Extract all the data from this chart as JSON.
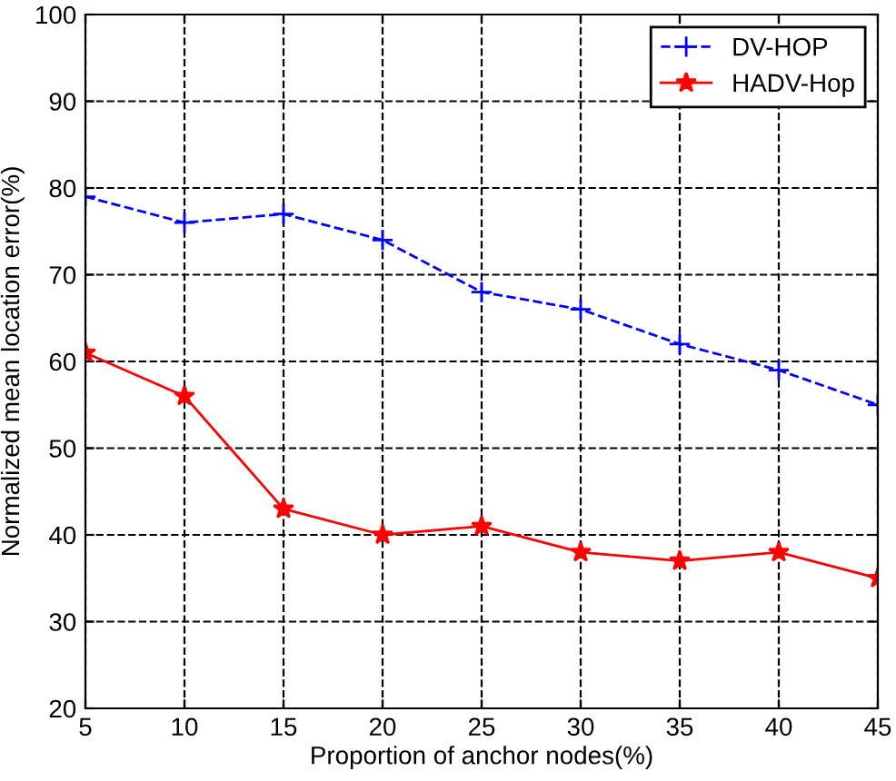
{
  "chart_data": {
    "type": "line",
    "xlabel": "Proportion of anchor nodes(%)",
    "ylabel": "Normalized mean location error(%)",
    "x": [
      5,
      10,
      15,
      20,
      25,
      30,
      35,
      40,
      45
    ],
    "series": [
      {
        "name": "DV-HOP",
        "color": "#0000ff",
        "marker": "cross",
        "line_style": "dashed",
        "values": [
          79,
          76,
          77,
          74,
          68,
          66,
          62,
          59,
          55
        ]
      },
      {
        "name": "HADV-Hop",
        "color": "#ff0000",
        "marker": "star",
        "line_style": "solid",
        "values": [
          61,
          56,
          43,
          40,
          41,
          38,
          37,
          38,
          35
        ]
      }
    ],
    "xlim": [
      5,
      45
    ],
    "xticks": [
      5,
      10,
      15,
      20,
      25,
      30,
      35,
      40,
      45
    ],
    "ylim": [
      20,
      100
    ],
    "yticks": [
      20,
      30,
      40,
      50,
      60,
      70,
      80,
      90,
      100
    ],
    "grid": true,
    "legend": "top right"
  }
}
